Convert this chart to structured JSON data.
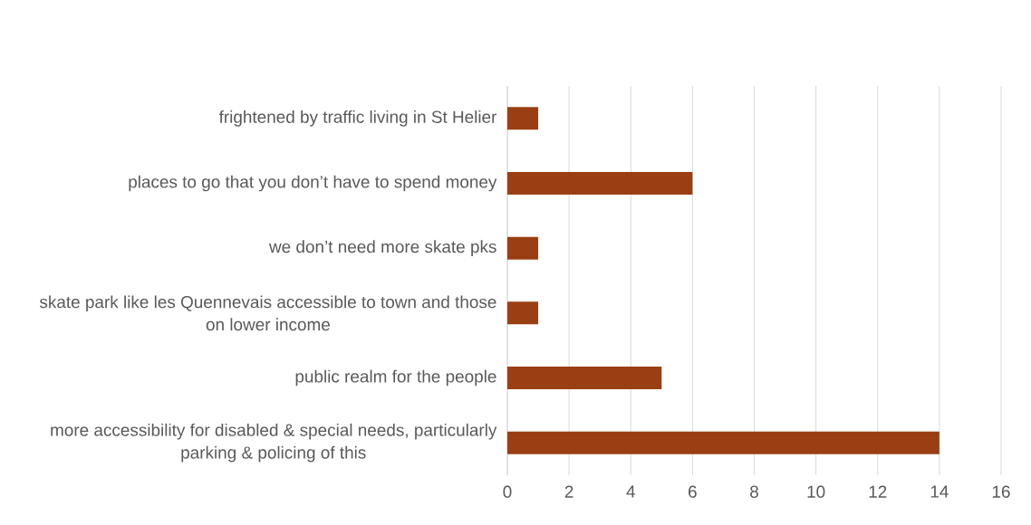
{
  "chart_data": {
    "type": "bar",
    "orientation": "horizontal",
    "categories": [
      "frightened by traffic living in St Helier",
      "places to go that you don’t have to spend money",
      "we don’t need more skate pks",
      "skate park like les Quennevais accessible to town and those on lower income",
      "public realm for the people",
      "more accessibility for disabled & special needs, particularly parking & policing of this"
    ],
    "values": [
      1,
      6,
      1,
      1,
      5,
      14
    ],
    "color": "#9a3f13",
    "xlim": [
      0,
      16
    ],
    "xticks": [
      0,
      2,
      4,
      6,
      8,
      10,
      12,
      14,
      16
    ],
    "grid": "x"
  }
}
